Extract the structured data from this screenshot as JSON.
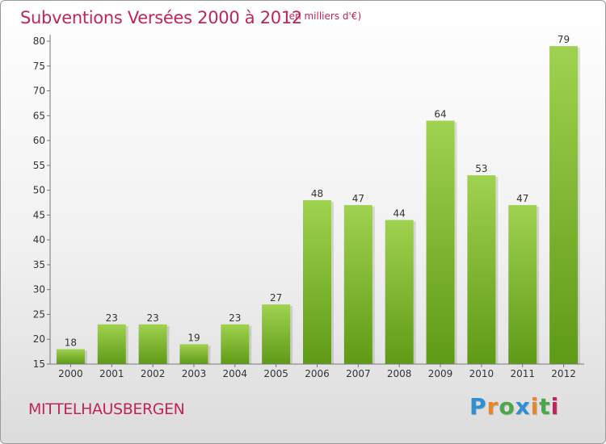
{
  "header": {
    "title": "Subventions Versées 2000 à 2012",
    "subtitle": "(en milliers d'€)"
  },
  "footer": {
    "commune": "MITTELHAUSBERGEN",
    "logo": {
      "letters": [
        "P",
        "r",
        "o",
        "x",
        "i",
        "t",
        "i"
      ],
      "colors": [
        "#2f8fd1",
        "#e8862a",
        "#4aa84a",
        "#2f8fd1",
        "#e8862a",
        "#4aa84a",
        "#c0245c"
      ]
    }
  },
  "colors": {
    "bar_top": "#9fd24f",
    "bar_bottom": "#5f9a16",
    "accent": "#c0245c"
  },
  "chart_data": {
    "type": "bar",
    "title": "Subventions Versées 2000 à 2012",
    "subtitle": "(en milliers d'€)",
    "categories": [
      "2000",
      "2001",
      "2002",
      "2003",
      "2004",
      "2005",
      "2006",
      "2007",
      "2008",
      "2009",
      "2010",
      "2011",
      "2012"
    ],
    "values": [
      18,
      23,
      23,
      19,
      23,
      27,
      48,
      47,
      44,
      64,
      53,
      47,
      79
    ],
    "ylim": [
      15,
      80
    ],
    "yticks": [
      15,
      20,
      25,
      30,
      35,
      40,
      45,
      50,
      55,
      60,
      65,
      70,
      75,
      80
    ],
    "xlabel": "",
    "ylabel": "",
    "grid": false,
    "legend": "none"
  }
}
